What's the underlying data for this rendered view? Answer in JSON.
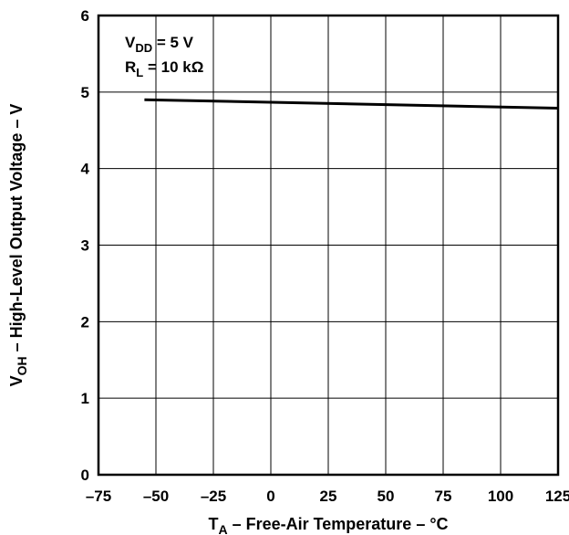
{
  "chart_data": {
    "type": "line",
    "xlim": [
      -75,
      125
    ],
    "ylim": [
      0,
      6
    ],
    "x_ticks": [
      -75,
      -50,
      -25,
      0,
      25,
      50,
      75,
      100,
      125
    ],
    "y_ticks": [
      0,
      1,
      2,
      3,
      4,
      5,
      6
    ],
    "grid": true,
    "xlabel": {
      "main": "T",
      "sub": "A",
      "rest": " – Free-Air Temperature  – °C"
    },
    "ylabel": {
      "main": "V",
      "sub": "OH",
      "rest": " – High-Level Output Voltage – V"
    },
    "annotations": [
      {
        "main": "V",
        "sub": "DD",
        "rest": " = 5 V"
      },
      {
        "main": "R",
        "sub": "L",
        "rest": " = 10 kΩ"
      }
    ],
    "series": [
      {
        "color": "#000000",
        "x": [
          -55,
          125
        ],
        "y": [
          4.9,
          4.79
        ]
      }
    ]
  }
}
